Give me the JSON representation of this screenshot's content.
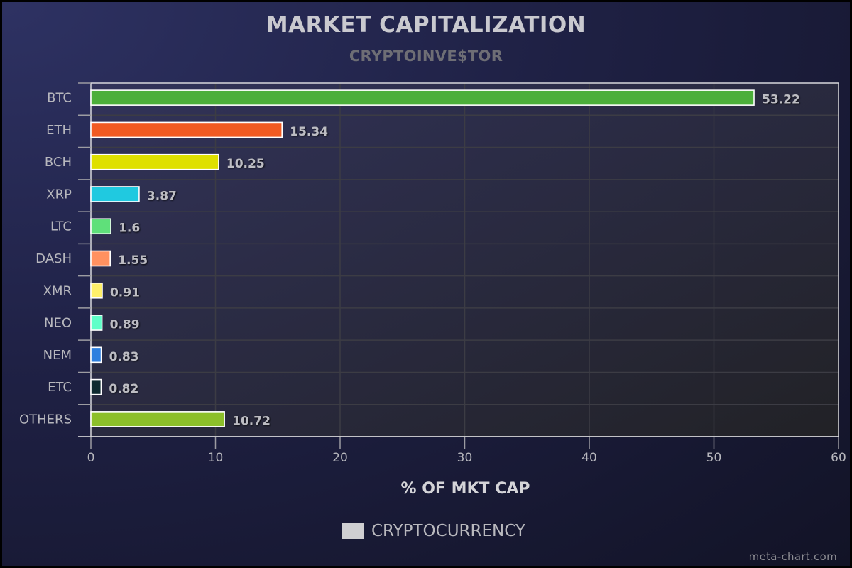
{
  "chart_data": {
    "type": "bar",
    "orientation": "horizontal",
    "title": "MARKET CAPITALIZATION",
    "subtitle": "CRYPTOINVE$TOR",
    "xlabel": "% OF MKT CAP",
    "ylabel": "",
    "xlim": [
      0,
      60
    ],
    "xticks": [
      0,
      10,
      20,
      30,
      40,
      50,
      60
    ],
    "grid": true,
    "legend_position": "bottom",
    "categories": [
      "BTC",
      "ETH",
      "BCH",
      "XRP",
      "LTC",
      "DASH",
      "XMR",
      "NEO",
      "NEM",
      "ETC",
      "OTHERS"
    ],
    "series": [
      {
        "name": "CRYPTOCURRENCY",
        "values": [
          53.22,
          15.34,
          10.25,
          3.87,
          1.6,
          1.55,
          0.91,
          0.89,
          0.83,
          0.82,
          10.72
        ],
        "labels": [
          "53.22",
          "15.34",
          "10.25",
          "3.87",
          "1.6",
          "1.55",
          "0.91",
          "0.89",
          "0.83",
          "0.82",
          "10.72"
        ],
        "colors": [
          "#4caf3a",
          "#f15a22",
          "#dfe000",
          "#20c9e0",
          "#5fe07a",
          "#ff9160",
          "#fff06a",
          "#5fffc8",
          "#2d7fdf",
          "#0e2a30",
          "#8cbf2a"
        ]
      }
    ]
  },
  "legend": {
    "label": "CRYPTOCURRENCY",
    "swatch_color": "#cfcfd2"
  },
  "credit": "meta-chart.com"
}
